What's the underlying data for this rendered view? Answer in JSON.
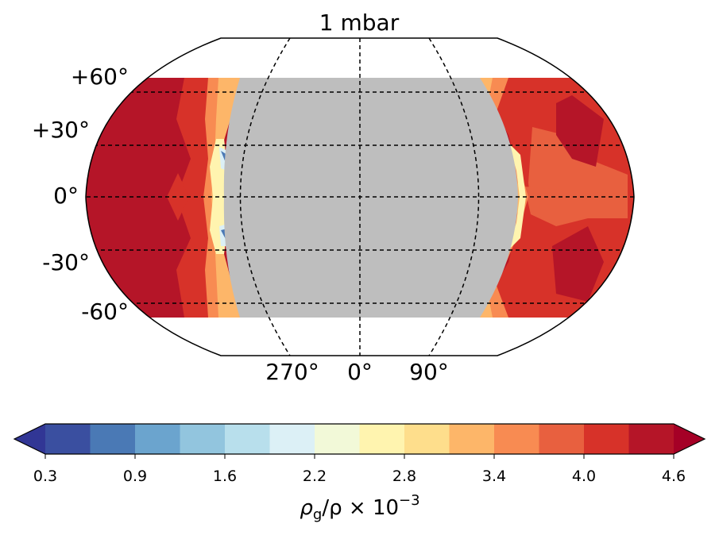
{
  "chart_data": {
    "type": "heatmap",
    "projection": "robinson",
    "title": "1 mbar",
    "lat_labels": [
      "+60°",
      "+30°",
      "0°",
      "-30°",
      "-60°"
    ],
    "lat_values": [
      60,
      30,
      0,
      -30,
      -60
    ],
    "lon_labels": [
      "270°",
      "0°",
      "90°"
    ],
    "lon_values": [
      270,
      0,
      90
    ],
    "masked_color": "#bebebe",
    "masked_region": "nightside / no data",
    "colorbar": {
      "label_base": "ρ",
      "label_sub": "g",
      "label_mid": "/ρ × 10",
      "label_sup": "−3",
      "ticks": [
        "0.3",
        "0.9",
        "1.6",
        "2.2",
        "2.8",
        "3.4",
        "4.0",
        "4.6"
      ],
      "tick_values": [
        0.3,
        0.9,
        1.6,
        2.2,
        2.8,
        3.4,
        4.0,
        4.6
      ],
      "extend": "both",
      "colors": [
        "#313695",
        "#3a4fa0",
        "#4a79b5",
        "#6ba4ce",
        "#92c5de",
        "#b8dfec",
        "#dcf0f6",
        "#f2f9d8",
        "#fff4af",
        "#fede8c",
        "#fdb669",
        "#f88b52",
        "#e8603f",
        "#d73229",
        "#b51528",
        "#a50026"
      ]
    }
  }
}
